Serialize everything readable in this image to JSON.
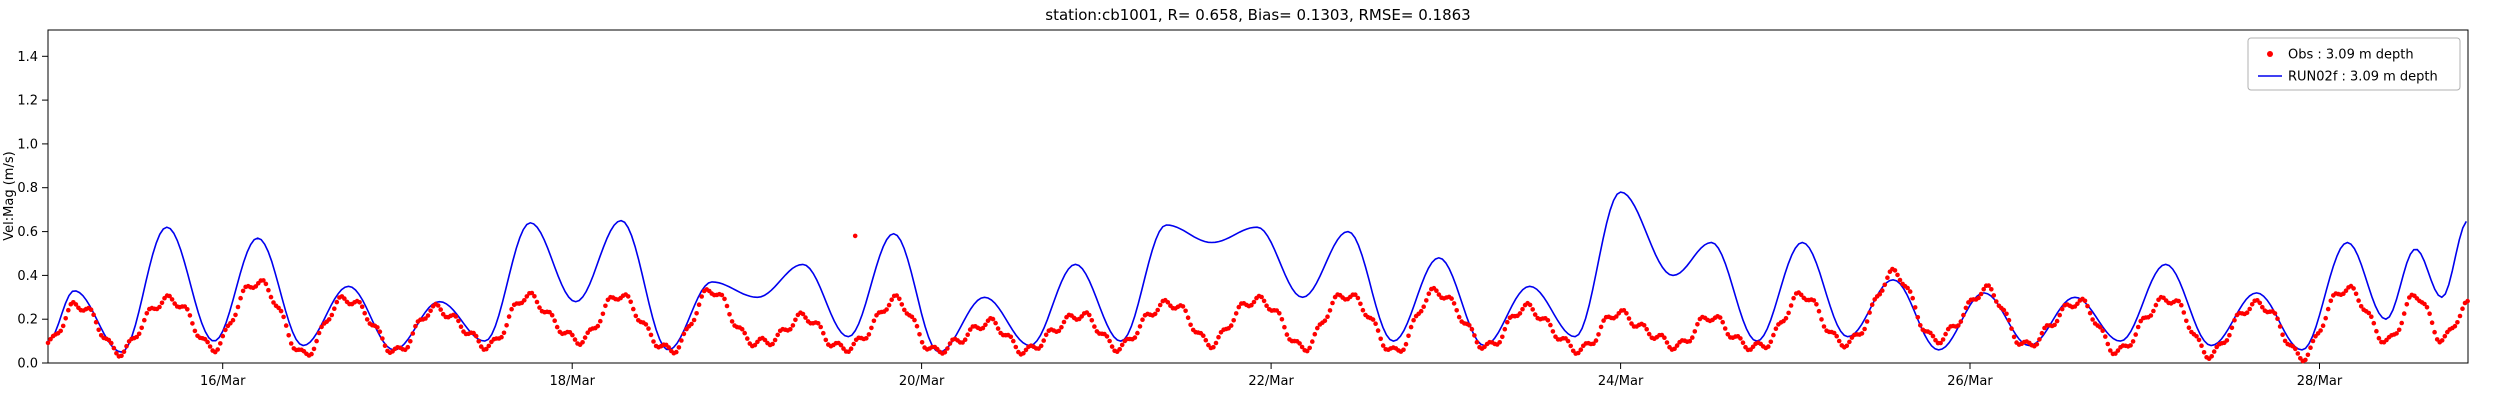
{
  "chart_data": {
    "type": "line",
    "title": "station:cb1001, R= 0.658, Bias= 0.1303, RMSE= 0.1863",
    "ylabel": "Vel:Mag (m/s)",
    "xlabel": "",
    "ylim": [
      0,
      1.52
    ],
    "yticks": [
      0.0,
      0.2,
      0.4,
      0.6,
      0.8,
      1.0,
      1.2,
      1.4
    ],
    "x_range_days": [
      0,
      13.85
    ],
    "xticks": [
      {
        "t": 1,
        "label": "16/Mar"
      },
      {
        "t": 3,
        "label": "18/Mar"
      },
      {
        "t": 5,
        "label": "20/Mar"
      },
      {
        "t": 7,
        "label": "22/Mar"
      },
      {
        "t": 9,
        "label": "24/Mar"
      },
      {
        "t": 11,
        "label": "26/Mar"
      },
      {
        "t": 13,
        "label": "28/Mar"
      }
    ],
    "grid": false,
    "legend_position": "upper right",
    "series": [
      {
        "name": "Obs : 3.09 m depth",
        "render": "scatter",
        "color": "#ff0000",
        "keypoints": [
          [
            0.0,
            0.08
          ],
          [
            0.15,
            0.27
          ],
          [
            0.42,
            0.06
          ],
          [
            0.68,
            0.3
          ],
          [
            0.95,
            0.08
          ],
          [
            1.2,
            0.38
          ],
          [
            1.46,
            0.05
          ],
          [
            1.72,
            0.3
          ],
          [
            1.98,
            0.06
          ],
          [
            2.24,
            0.25
          ],
          [
            2.5,
            0.08
          ],
          [
            2.76,
            0.3
          ],
          [
            3.02,
            0.1
          ],
          [
            3.28,
            0.3
          ],
          [
            3.55,
            0.05
          ],
          [
            3.8,
            0.32
          ],
          [
            4.06,
            0.08
          ],
          [
            4.32,
            0.2
          ],
          [
            4.58,
            0.06
          ],
          [
            4.84,
            0.28
          ],
          [
            5.1,
            0.05
          ],
          [
            5.36,
            0.18
          ],
          [
            5.62,
            0.06
          ],
          [
            5.88,
            0.22
          ],
          [
            6.14,
            0.08
          ],
          [
            6.4,
            0.28
          ],
          [
            6.66,
            0.1
          ],
          [
            6.92,
            0.3
          ],
          [
            7.18,
            0.08
          ],
          [
            7.44,
            0.32
          ],
          [
            7.7,
            0.06
          ],
          [
            7.96,
            0.33
          ],
          [
            8.22,
            0.08
          ],
          [
            8.48,
            0.25
          ],
          [
            8.74,
            0.06
          ],
          [
            9.0,
            0.22
          ],
          [
            9.3,
            0.08
          ],
          [
            9.52,
            0.2
          ],
          [
            9.78,
            0.06
          ],
          [
            10.04,
            0.3
          ],
          [
            10.3,
            0.08
          ],
          [
            10.56,
            0.4
          ],
          [
            10.82,
            0.1
          ],
          [
            11.08,
            0.33
          ],
          [
            11.34,
            0.08
          ],
          [
            11.6,
            0.28
          ],
          [
            11.86,
            0.06
          ],
          [
            12.12,
            0.3
          ],
          [
            12.38,
            0.05
          ],
          [
            12.64,
            0.28
          ],
          [
            12.9,
            0.04
          ],
          [
            13.16,
            0.35
          ],
          [
            13.38,
            0.1
          ],
          [
            13.55,
            0.3
          ],
          [
            13.7,
            0.12
          ],
          [
            13.85,
            0.25
          ]
        ],
        "outliers": [
          [
            4.62,
            0.58
          ]
        ]
      },
      {
        "name": "RUN02f : 3.09 m depth",
        "render": "line",
        "color": "#0000ee",
        "keypoints": [
          [
            0.0,
            0.1
          ],
          [
            0.15,
            0.33
          ],
          [
            0.42,
            0.05
          ],
          [
            0.68,
            0.62
          ],
          [
            0.95,
            0.1
          ],
          [
            1.2,
            0.57
          ],
          [
            1.46,
            0.08
          ],
          [
            1.72,
            0.35
          ],
          [
            1.98,
            0.06
          ],
          [
            2.24,
            0.28
          ],
          [
            2.5,
            0.1
          ],
          [
            2.76,
            0.64
          ],
          [
            3.02,
            0.28
          ],
          [
            3.28,
            0.65
          ],
          [
            3.55,
            0.06
          ],
          [
            3.8,
            0.37
          ],
          [
            4.06,
            0.3
          ],
          [
            4.32,
            0.45
          ],
          [
            4.58,
            0.12
          ],
          [
            4.84,
            0.59
          ],
          [
            5.1,
            0.05
          ],
          [
            5.36,
            0.3
          ],
          [
            5.62,
            0.08
          ],
          [
            5.88,
            0.45
          ],
          [
            6.14,
            0.1
          ],
          [
            6.4,
            0.63
          ],
          [
            6.66,
            0.55
          ],
          [
            6.92,
            0.62
          ],
          [
            7.18,
            0.3
          ],
          [
            7.44,
            0.6
          ],
          [
            7.7,
            0.1
          ],
          [
            7.96,
            0.48
          ],
          [
            8.22,
            0.08
          ],
          [
            8.48,
            0.35
          ],
          [
            8.74,
            0.12
          ],
          [
            9.0,
            0.78
          ],
          [
            9.3,
            0.4
          ],
          [
            9.52,
            0.55
          ],
          [
            9.78,
            0.1
          ],
          [
            10.04,
            0.55
          ],
          [
            10.3,
            0.12
          ],
          [
            10.56,
            0.38
          ],
          [
            10.82,
            0.06
          ],
          [
            11.08,
            0.32
          ],
          [
            11.34,
            0.08
          ],
          [
            11.6,
            0.3
          ],
          [
            11.86,
            0.1
          ],
          [
            12.12,
            0.45
          ],
          [
            12.38,
            0.08
          ],
          [
            12.64,
            0.32
          ],
          [
            12.9,
            0.06
          ],
          [
            13.16,
            0.55
          ],
          [
            13.38,
            0.2
          ],
          [
            13.55,
            0.52
          ],
          [
            13.7,
            0.3
          ],
          [
            13.85,
            0.65
          ]
        ]
      }
    ]
  },
  "legend": {
    "items": [
      {
        "label": "Obs : 3.09 m depth",
        "marker": "dot-marker",
        "color": "#ff0000"
      },
      {
        "label": "RUN02f : 3.09 m depth",
        "marker": "line-marker",
        "color": "#0000ee"
      }
    ]
  }
}
